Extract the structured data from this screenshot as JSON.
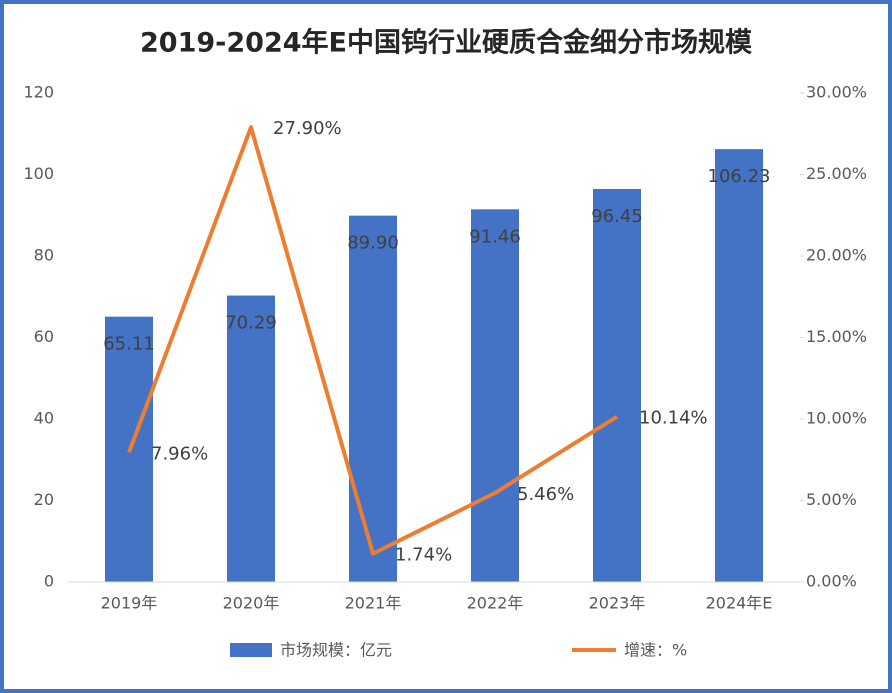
{
  "chart_data": {
    "type": "bar",
    "title": "2019-2024年E中国钨行业硬质合金细分市场规模",
    "categories": [
      "2019年",
      "2020年",
      "2021年",
      "2022年",
      "2023年",
      "2024年E"
    ],
    "series": [
      {
        "name": "市场规模：亿元",
        "color": "#4472c4",
        "values": [
          65.11,
          70.29,
          89.9,
          91.46,
          96.45,
          106.23
        ],
        "value_labels": [
          "65.11",
          "70.29",
          "89.90",
          "91.46",
          "96.45",
          "106.23"
        ]
      },
      {
        "name": "增速：%",
        "color": "#ed7d31",
        "axis": "y2",
        "type": "line",
        "values": [
          7.96,
          27.9,
          1.74,
          5.46,
          10.14,
          null
        ],
        "value_labels": [
          "7.96%",
          "27.90%",
          "1.74%",
          "5.46%",
          "10.14%",
          null
        ]
      }
    ],
    "ylim": [
      0,
      120
    ],
    "yticks": [
      0,
      20,
      40,
      60,
      80,
      100,
      120
    ],
    "y2lim": [
      0,
      30
    ],
    "y2ticks": [
      {
        "value": 0,
        "label": "0.00%"
      },
      {
        "value": 5,
        "label": "5.00%"
      },
      {
        "value": 10,
        "label": "10.00%"
      },
      {
        "value": 15,
        "label": "15.00%"
      },
      {
        "value": 20,
        "label": "20.00%"
      },
      {
        "value": 25,
        "label": "25.00%"
      },
      {
        "value": 30,
        "label": "30.00%"
      }
    ],
    "legend": "bottom"
  }
}
